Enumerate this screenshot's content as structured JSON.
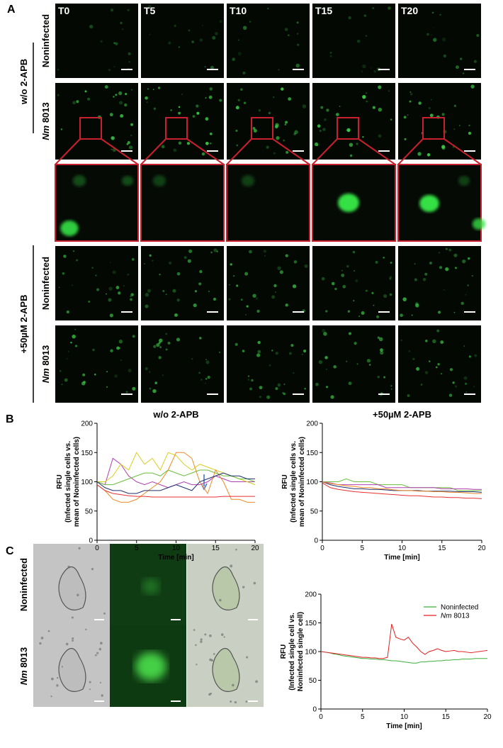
{
  "panel_labels": [
    "A",
    "B",
    "C"
  ],
  "panel_a": {
    "columns": [
      "T0",
      "T5",
      "T10",
      "T15",
      "T20"
    ],
    "groups": [
      {
        "label": "w/o 2-APB"
      },
      {
        "label": "+50µM 2-APB"
      }
    ],
    "rows": [
      {
        "label": "Noninfected"
      },
      {
        "label": "Nm 8013"
      },
      {
        "label": "Noninfected"
      },
      {
        "label": "Nm 8013"
      }
    ]
  },
  "panel_c": {
    "rows": [
      {
        "label": "Noninfected"
      },
      {
        "label": "Nm 8013"
      }
    ]
  },
  "chart_data": [
    {
      "type": "line",
      "title": "w/o 2-APB",
      "xlabel": "Time [min]",
      "ylabel": [
        "RFU",
        "(Infected single cells vs.",
        "mean of Noninfected cells)"
      ],
      "x": [
        0,
        1,
        2,
        3,
        4,
        5,
        6,
        7,
        8,
        9,
        10,
        11,
        12,
        13,
        14,
        15,
        16,
        17,
        18,
        19,
        20
      ],
      "xlim": [
        0,
        20
      ],
      "xticks": [
        0,
        5,
        10,
        15,
        20
      ],
      "ylim": [
        0,
        200
      ],
      "yticks": [
        0,
        50,
        100,
        150,
        200
      ],
      "series": [
        {
          "color": "#b040b0",
          "values": [
            100,
            95,
            140,
            130,
            110,
            100,
            95,
            100,
            95,
            90,
            95,
            100,
            95,
            95,
            100,
            110,
            105,
            100,
            100,
            100,
            100
          ]
        },
        {
          "color": "#d8d020",
          "values": [
            100,
            100,
            110,
            130,
            120,
            150,
            130,
            140,
            120,
            150,
            145,
            130,
            120,
            130,
            125,
            120,
            115,
            110,
            105,
            100,
            95
          ]
        },
        {
          "color": "#6cbf3c",
          "values": [
            100,
            95,
            95,
            100,
            105,
            110,
            115,
            115,
            110,
            120,
            115,
            110,
            115,
            120,
            120,
            115,
            110,
            110,
            105,
            105,
            100
          ]
        },
        {
          "color": "#f08a24",
          "values": [
            95,
            85,
            70,
            65,
            65,
            70,
            80,
            90,
            100,
            120,
            150,
            150,
            140,
            100,
            80,
            120,
            100,
            70,
            70,
            65,
            65
          ]
        },
        {
          "color": "#203070",
          "values": [
            100,
            90,
            85,
            85,
            80,
            80,
            85,
            85,
            85,
            90,
            95,
            90,
            85,
            100,
            105,
            110,
            115,
            110,
            110,
            105,
            105
          ]
        },
        {
          "color": "#e83030",
          "values": [
            95,
            85,
            80,
            78,
            76,
            75,
            75,
            74,
            74,
            74,
            74,
            74,
            74,
            74,
            74,
            74,
            75,
            75,
            75,
            75,
            75
          ]
        }
      ]
    },
    {
      "type": "line",
      "title": "+50µM 2-APB",
      "xlabel": "Time [min]",
      "ylabel": [
        "RFU",
        "(Infected single cells vs.",
        "mean of Noninfected cells)"
      ],
      "x": [
        0,
        1,
        2,
        3,
        4,
        5,
        6,
        7,
        8,
        9,
        10,
        11,
        12,
        13,
        14,
        15,
        16,
        17,
        18,
        19,
        20
      ],
      "xlim": [
        0,
        20
      ],
      "xticks": [
        0,
        5,
        10,
        15,
        20
      ],
      "ylim": [
        0,
        200
      ],
      "yticks": [
        0,
        50,
        100,
        150,
        200
      ],
      "series": [
        {
          "color": "#6cbf3c",
          "values": [
            100,
            100,
            100,
            105,
            100,
            100,
            100,
            95,
            95,
            95,
            95,
            90,
            90,
            90,
            90,
            90,
            90,
            85,
            85,
            85,
            85
          ]
        },
        {
          "color": "#b040b0",
          "values": [
            100,
            98,
            95,
            95,
            95,
            95,
            95,
            95,
            90,
            90,
            90,
            90,
            90,
            90,
            90,
            88,
            88,
            88,
            88,
            87,
            87
          ]
        },
        {
          "color": "#203070",
          "values": [
            100,
            95,
            92,
            90,
            88,
            88,
            87,
            87,
            86,
            85,
            85,
            85,
            85,
            84,
            84,
            84,
            84,
            83,
            83,
            83,
            82
          ]
        },
        {
          "color": "#f08a24",
          "values": [
            100,
            97,
            95,
            93,
            92,
            90,
            90,
            88,
            88,
            86,
            85,
            85,
            84,
            84,
            83,
            83,
            82,
            82,
            81,
            80,
            80
          ]
        },
        {
          "color": "#e83030",
          "values": [
            98,
            90,
            87,
            85,
            83,
            82,
            81,
            80,
            79,
            78,
            77,
            76,
            76,
            75,
            74,
            74,
            73,
            73,
            72,
            72,
            71
          ]
        }
      ]
    },
    {
      "type": "line",
      "xlabel": "Time [min]",
      "ylabel": [
        "RFU",
        "(Infected single cell vs.",
        "Noninfected single cell)"
      ],
      "x": [
        0,
        0.5,
        1,
        1.5,
        2,
        2.5,
        3,
        3.5,
        4,
        4.5,
        5,
        5.5,
        6,
        6.5,
        7,
        7.5,
        8,
        8.5,
        9,
        9.5,
        10,
        10.5,
        11,
        11.5,
        12,
        12.5,
        13,
        13.5,
        14,
        14.5,
        15,
        15.5,
        16,
        16.5,
        17,
        17.5,
        18,
        18.5,
        19,
        19.5,
        20
      ],
      "xlim": [
        0,
        20
      ],
      "xticks": [
        0,
        5,
        10,
        15,
        20
      ],
      "ylim": [
        0,
        200
      ],
      "yticks": [
        0,
        50,
        100,
        150,
        200
      ],
      "legend": "upper right",
      "series": [
        {
          "name": "Noninfected",
          "color": "#3cb03c",
          "values": [
            100,
            99,
            98,
            96,
            95,
            93,
            92,
            91,
            90,
            89,
            88,
            88,
            87,
            87,
            86,
            86,
            85,
            84,
            84,
            83,
            82,
            81,
            80,
            80,
            82,
            82,
            83,
            83,
            84,
            84,
            85,
            85,
            86,
            86,
            87,
            87,
            87,
            88,
            88,
            88,
            88
          ]
        },
        {
          "name": "Nm 8013",
          "color": "#e02020",
          "values": [
            100,
            99,
            98,
            97,
            96,
            95,
            94,
            93,
            92,
            91,
            90,
            90,
            89,
            89,
            88,
            88,
            90,
            148,
            125,
            122,
            120,
            125,
            115,
            108,
            100,
            95,
            100,
            102,
            105,
            102,
            100,
            101,
            102,
            100,
            100,
            99,
            98,
            99,
            100,
            101,
            102
          ]
        }
      ]
    }
  ]
}
